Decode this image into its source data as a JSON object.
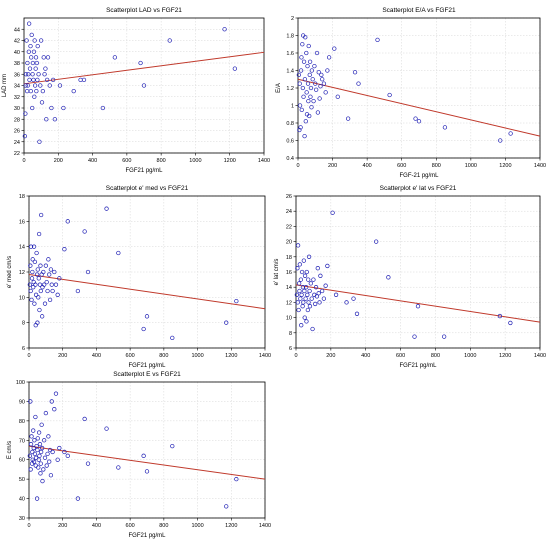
{
  "style": {
    "point_color": "#1f1fb4",
    "fit_line_color": "#c0392b",
    "grid_color": "#d6d6d6",
    "axis_color": "#000000"
  },
  "chart_data": [
    {
      "type": "scatter",
      "title": "Scatterplot LAD vs FGF21",
      "xlabel": "FGF21 pg/mL",
      "ylabel": "LAD mm",
      "xlim": [
        0,
        1400
      ],
      "ylim": [
        22,
        46
      ],
      "xticks": [
        0,
        200,
        400,
        600,
        800,
        1000,
        1200,
        1400
      ],
      "yticks": [
        22,
        24,
        26,
        28,
        30,
        32,
        34,
        36,
        38,
        40,
        42,
        44
      ],
      "grid": true,
      "fit_line": {
        "x": [
          0,
          1400
        ],
        "y": [
          34.3,
          39.9
        ]
      },
      "points": {
        "x": [
          5,
          8,
          10,
          12,
          15,
          18,
          20,
          22,
          25,
          28,
          30,
          32,
          35,
          38,
          40,
          42,
          45,
          48,
          50,
          52,
          55,
          58,
          60,
          62,
          65,
          68,
          70,
          72,
          75,
          78,
          80,
          85,
          90,
          95,
          100,
          105,
          110,
          115,
          120,
          125,
          130,
          135,
          140,
          150,
          160,
          170,
          180,
          210,
          230,
          290,
          330,
          350,
          460,
          530,
          680,
          700,
          850,
          1170,
          1230
        ],
        "y": [
          25,
          29,
          34,
          36,
          42,
          33,
          38,
          34,
          36,
          40,
          45,
          35,
          37,
          41,
          33,
          39,
          43,
          30,
          36,
          38,
          35,
          40,
          32,
          42,
          34,
          37,
          39,
          33,
          38,
          35,
          41,
          36,
          24,
          34,
          42,
          31,
          33,
          39,
          36,
          37,
          28,
          35,
          39,
          34,
          30,
          35,
          28,
          34,
          30,
          33,
          35,
          35,
          30,
          39,
          38,
          34,
          42,
          44,
          37
        ]
      }
    },
    {
      "type": "scatter",
      "title": "Scatterplot E/A vs FGF21",
      "xlabel": "FGF-21 pg/mL",
      "ylabel": "E/A",
      "xlim": [
        0,
        1400
      ],
      "ylim": [
        0.4,
        2.0
      ],
      "xticks": [
        0,
        200,
        400,
        600,
        800,
        1000,
        1200,
        1400
      ],
      "yticks": [
        0.4,
        0.6,
        0.8,
        1.0,
        1.2,
        1.4,
        1.6,
        1.8,
        2.0
      ],
      "grid": true,
      "fit_line": {
        "x": [
          0,
          1400
        ],
        "y": [
          1.3,
          0.65
        ]
      },
      "points": {
        "x": [
          5,
          8,
          10,
          12,
          15,
          18,
          20,
          22,
          25,
          28,
          30,
          32,
          35,
          38,
          40,
          42,
          45,
          48,
          50,
          52,
          55,
          58,
          60,
          62,
          65,
          68,
          70,
          72,
          75,
          78,
          80,
          85,
          90,
          95,
          100,
          105,
          110,
          115,
          120,
          125,
          130,
          135,
          140,
          150,
          160,
          170,
          180,
          210,
          230,
          290,
          330,
          350,
          460,
          530,
          680,
          700,
          850,
          1170,
          1230
        ],
        "y": [
          1.35,
          0.72,
          1.25,
          1.0,
          0.75,
          1.4,
          1.55,
          0.95,
          1.7,
          1.2,
          1.8,
          1.1,
          1.5,
          0.65,
          1.3,
          1.78,
          0.82,
          1.6,
          1.15,
          0.9,
          1.45,
          1.25,
          1.05,
          1.68,
          0.88,
          1.35,
          1.5,
          1.1,
          1.2,
          0.98,
          1.4,
          1.3,
          1.05,
          1.45,
          1.25,
          1.18,
          1.6,
          0.92,
          1.38,
          1.08,
          1.22,
          1.35,
          1.3,
          1.25,
          1.15,
          1.4,
          1.55,
          1.65,
          1.1,
          0.85,
          1.38,
          1.25,
          1.75,
          1.12,
          0.85,
          0.82,
          0.75,
          0.6,
          0.68
        ]
      }
    },
    {
      "type": "scatter",
      "title": "Scatterplot e' med vs FGF21",
      "xlabel": "FGF21 pg/mL",
      "ylabel": "e' med cm/s",
      "xlim": [
        0,
        1400
      ],
      "ylim": [
        6,
        18
      ],
      "xticks": [
        0,
        200,
        400,
        600,
        800,
        1000,
        1200,
        1400
      ],
      "yticks": [
        6,
        8,
        10,
        12,
        14,
        16,
        18
      ],
      "grid": true,
      "fit_line": {
        "x": [
          0,
          1400
        ],
        "y": [
          11.8,
          9.1
        ]
      },
      "points": {
        "x": [
          5,
          8,
          10,
          12,
          15,
          18,
          20,
          22,
          25,
          28,
          30,
          32,
          35,
          38,
          40,
          42,
          45,
          48,
          50,
          52,
          55,
          58,
          60,
          62,
          65,
          68,
          70,
          72,
          75,
          78,
          80,
          85,
          90,
          95,
          100,
          105,
          110,
          115,
          120,
          125,
          130,
          135,
          140,
          150,
          160,
          170,
          180,
          210,
          230,
          290,
          330,
          350,
          460,
          530,
          680,
          700,
          850,
          1170,
          1230
        ],
        "y": [
          11.0,
          12.5,
          10.5,
          14.0,
          9.8,
          11.5,
          12.0,
          13.0,
          10.8,
          11.2,
          14.0,
          9.5,
          12.8,
          11.0,
          7.8,
          10.2,
          13.5,
          11.8,
          8.0,
          12.2,
          10.0,
          11.5,
          15.0,
          9.0,
          11.0,
          12.5,
          10.5,
          16.5,
          11.8,
          8.5,
          10.8,
          12.0,
          11.0,
          9.5,
          12.5,
          11.2,
          10.5,
          13.0,
          11.8,
          9.8,
          12.2,
          11.0,
          10.5,
          12.0,
          11.0,
          10.2,
          11.5,
          13.8,
          16.0,
          10.5,
          15.2,
          12.0,
          17.0,
          13.5,
          7.5,
          8.5,
          6.8,
          8.0,
          9.7
        ]
      }
    },
    {
      "type": "scatter",
      "title": "Scatterplot e' lat vs FGF21",
      "xlabel": "FGF21 pg/mL",
      "ylabel": "e' lat cm/s",
      "xlim": [
        0,
        1400
      ],
      "ylim": [
        6,
        26
      ],
      "xticks": [
        0,
        200,
        400,
        600,
        800,
        1000,
        1200,
        1400
      ],
      "yticks": [
        6,
        8,
        10,
        12,
        14,
        16,
        18,
        20,
        22,
        24,
        26
      ],
      "grid": true,
      "fit_line": {
        "x": [
          0,
          1400
        ],
        "y": [
          14.3,
          9.4
        ]
      },
      "points": {
        "x": [
          5,
          8,
          10,
          12,
          15,
          18,
          20,
          22,
          25,
          28,
          30,
          32,
          35,
          38,
          40,
          42,
          45,
          48,
          50,
          52,
          55,
          58,
          60,
          62,
          65,
          68,
          70,
          72,
          75,
          78,
          80,
          85,
          90,
          95,
          100,
          105,
          110,
          115,
          120,
          125,
          130,
          135,
          140,
          150,
          160,
          170,
          180,
          210,
          230,
          290,
          330,
          350,
          460,
          530,
          680,
          700,
          850,
          1170,
          1230
        ],
        "y": [
          13.0,
          16.5,
          12.0,
          19.5,
          11.0,
          14.5,
          13.5,
          17.0,
          12.5,
          15.0,
          9.0,
          13.0,
          16.0,
          11.5,
          14.0,
          12.0,
          17.5,
          13.5,
          10.0,
          15.5,
          12.5,
          14.0,
          9.5,
          16.0,
          13.0,
          11.0,
          15.0,
          12.0,
          18.0,
          13.5,
          11.5,
          14.5,
          12.5,
          8.5,
          15.0,
          13.0,
          11.8,
          14.0,
          12.8,
          16.5,
          13.2,
          12.0,
          15.5,
          13.5,
          12.5,
          14.2,
          16.8,
          23.8,
          13.0,
          12.0,
          12.5,
          10.5,
          20.0,
          15.3,
          7.5,
          11.5,
          7.5,
          10.2,
          9.3
        ]
      }
    },
    {
      "type": "scatter",
      "title": "Scatterplot E vs FGF21",
      "xlabel": "FGF21 pg/mL",
      "ylabel": "E cm/s",
      "xlim": [
        0,
        1400
      ],
      "ylim": [
        30,
        100
      ],
      "xticks": [
        0,
        200,
        400,
        600,
        800,
        1000,
        1200,
        1400
      ],
      "yticks": [
        30,
        40,
        50,
        60,
        70,
        80,
        90,
        100
      ],
      "grid": true,
      "fit_line": {
        "x": [
          0,
          1400
        ],
        "y": [
          67,
          50
        ]
      },
      "points": {
        "x": [
          5,
          8,
          10,
          12,
          15,
          18,
          20,
          22,
          25,
          28,
          30,
          32,
          35,
          38,
          40,
          42,
          45,
          48,
          50,
          52,
          55,
          58,
          60,
          62,
          65,
          68,
          70,
          72,
          75,
          78,
          80,
          85,
          90,
          95,
          100,
          105,
          110,
          115,
          120,
          125,
          130,
          135,
          140,
          150,
          160,
          170,
          180,
          210,
          230,
          290,
          330,
          350,
          460,
          530,
          680,
          700,
          850,
          1170,
          1230
        ],
        "y": [
          62,
          90,
          55,
          68,
          72,
          58,
          64,
          60,
          75,
          66,
          59,
          70,
          63,
          82,
          57,
          61,
          67,
          40,
          65,
          71,
          56,
          60,
          74,
          62,
          68,
          53,
          58,
          64,
          78,
          66,
          49,
          55,
          70,
          61,
          84,
          57,
          63,
          72,
          59,
          65,
          52,
          90,
          64,
          86,
          94,
          60,
          66,
          64,
          62,
          40,
          81,
          58,
          76,
          56,
          62,
          54,
          67,
          36,
          50
        ]
      }
    }
  ]
}
